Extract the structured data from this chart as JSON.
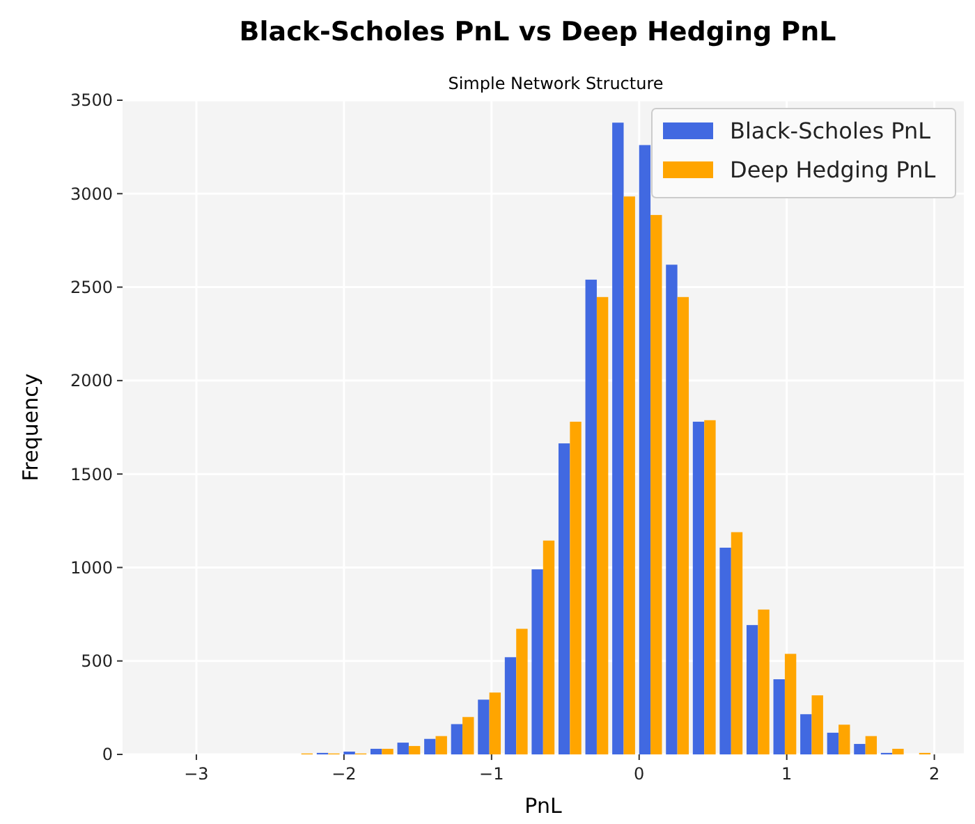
{
  "chart_data": {
    "type": "histogram",
    "title": "Black-Scholes PnL vs Deep Hedging PnL",
    "subtitle": "Simple Network Structure",
    "xlabel": "PnL",
    "ylabel": "Frequency",
    "bins": [
      -2.38,
      -2.198,
      -2.016,
      -1.834,
      -1.652,
      -1.47,
      -1.288,
      -1.106,
      -0.924,
      -0.742,
      -0.56,
      -0.378,
      -0.196,
      -0.014,
      0.168,
      0.35,
      0.532,
      0.714,
      0.896,
      1.078,
      1.26,
      1.442,
      1.624,
      1.806,
      1.988
    ],
    "series": [
      {
        "name": "Black-Scholes PnL",
        "color": "#4169e1",
        "values": [
          0,
          8,
          15,
          30,
          63,
          83,
          162,
          293,
          520,
          990,
          1664,
          2540,
          3380,
          3260,
          2620,
          1780,
          1106,
          692,
          402,
          215,
          116,
          56,
          8,
          0
        ]
      },
      {
        "name": "Deep Hedging PnL",
        "color": "#ffa500",
        "values": [
          5,
          5,
          5,
          30,
          45,
          98,
          200,
          331,
          672,
          1144,
          1780,
          2447,
          2985,
          2886,
          2447,
          1788,
          1189,
          775,
          538,
          316,
          159,
          98,
          30,
          8
        ]
      }
    ],
    "xlim": [
      -3.5,
      2.2
    ],
    "xticks": [
      {
        "value": -3,
        "label": "−3"
      },
      {
        "value": -2,
        "label": "−2"
      },
      {
        "value": -1,
        "label": "−1"
      },
      0,
      1,
      2
    ],
    "ylim": [
      0,
      3500
    ],
    "yticks": [
      0,
      500,
      1000,
      1500,
      2000,
      2500,
      3000,
      3500
    ],
    "grid": true,
    "legend": "top right"
  }
}
